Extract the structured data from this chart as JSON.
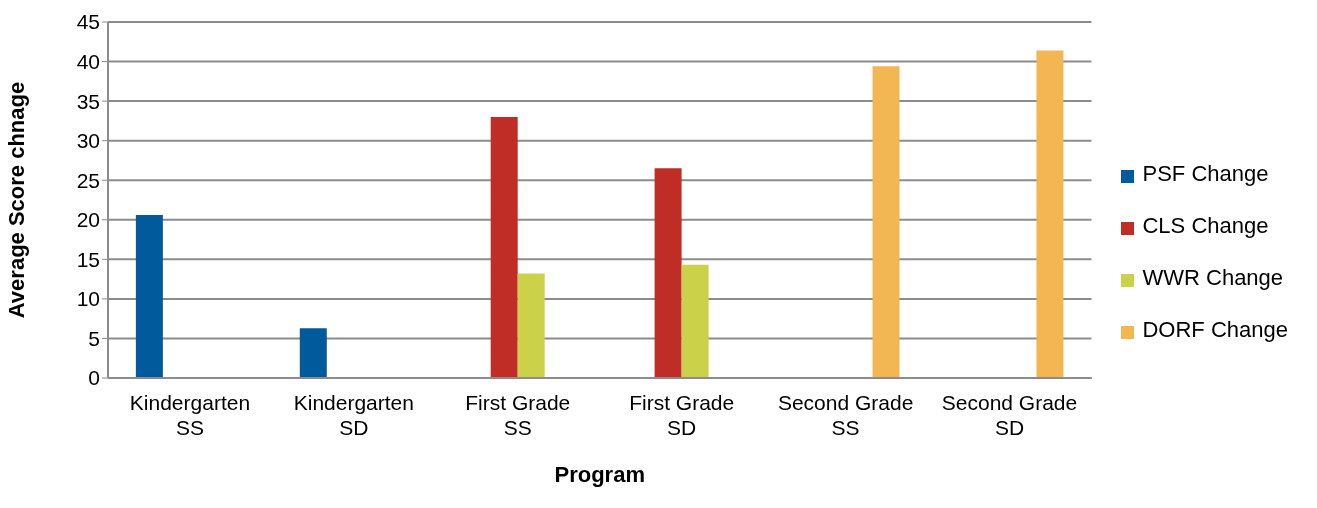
{
  "chart_data": {
    "type": "bar",
    "xlabel": "Program",
    "ylabel": "Average Score chnage",
    "categories": [
      "Kindergarten SS",
      "Kindergarten SD",
      "First Grade SS",
      "First Grade SD",
      "Second Grade SS",
      "Second Grade SD"
    ],
    "series": [
      {
        "name": "PSF Change",
        "color": "#005a9c",
        "values": [
          20.6,
          6.3,
          null,
          null,
          null,
          null
        ]
      },
      {
        "name": "CLS Change",
        "color": "#c02c26",
        "values": [
          null,
          null,
          33.0,
          26.5,
          null,
          null
        ]
      },
      {
        "name": "WWR Change",
        "color": "#ccd14a",
        "values": [
          null,
          null,
          13.2,
          14.3,
          null,
          null
        ]
      },
      {
        "name": "DORF Change",
        "color": "#f2b652",
        "values": [
          null,
          null,
          null,
          null,
          39.4,
          41.4
        ]
      }
    ],
    "ylim": [
      0,
      45
    ],
    "yticks": [
      0,
      5,
      10,
      15,
      20,
      25,
      30,
      35,
      40,
      45
    ],
    "grid": "y",
    "legend": "right"
  }
}
